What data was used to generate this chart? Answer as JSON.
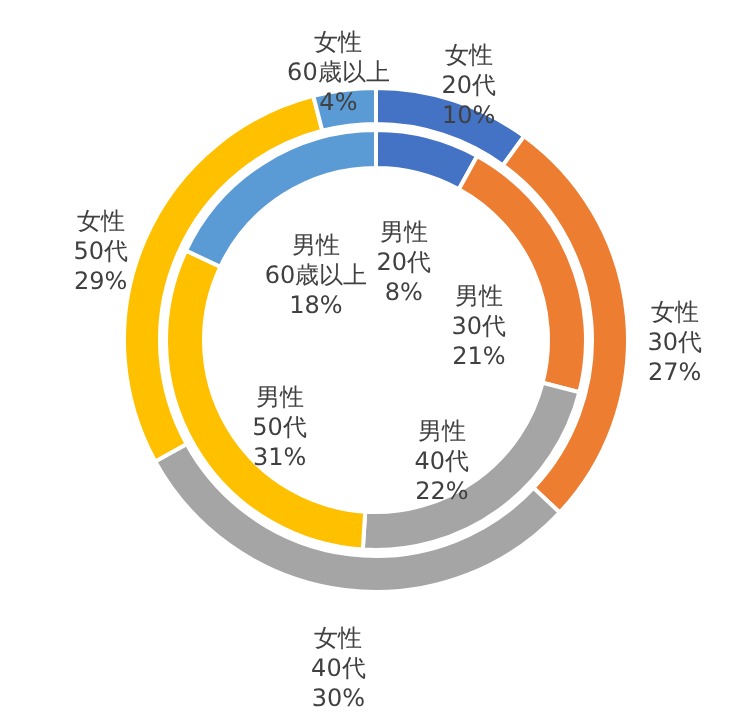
{
  "chart_data": {
    "type": "donut",
    "categories": [
      "20代",
      "30代",
      "40代",
      "50代",
      "60歳以上"
    ],
    "colors": [
      "#4472c4",
      "#ed7d31",
      "#a5a5a5",
      "#ffc000",
      "#5b9bd5"
    ],
    "data_labels": true,
    "series": [
      {
        "name": "女性",
        "values": [
          10,
          27,
          30,
          29,
          4
        ],
        "value_labels": [
          "10%",
          "27%",
          "30%",
          "29%",
          "4%"
        ]
      },
      {
        "name": "男性",
        "values": [
          8,
          21,
          22,
          31,
          18
        ],
        "value_labels": [
          "8%",
          "21%",
          "22%",
          "31%",
          "18%"
        ]
      }
    ]
  }
}
